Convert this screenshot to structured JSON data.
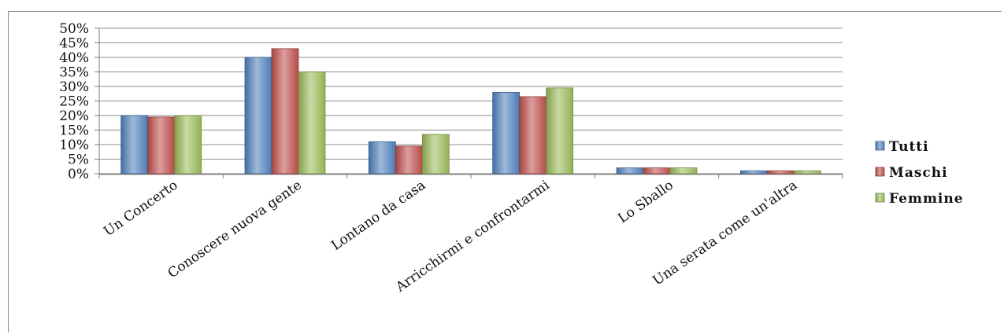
{
  "chart_data": {
    "type": "bar",
    "title": "",
    "xlabel": "",
    "ylabel": "",
    "ylim": [
      0,
      50
    ],
    "y_unit": "%",
    "y_ticks": [
      "0%",
      "5%",
      "10%",
      "15%",
      "20%",
      "25%",
      "30%",
      "35%",
      "40%",
      "45%",
      "50%"
    ],
    "grid": true,
    "legend_position": "right",
    "categories": [
      "Un Concerto",
      "Conoscere nuova gente",
      "Lontano da casa",
      "Arricchirmi e confrontarmi",
      "Lo Sballo",
      "Una serata come un'altra"
    ],
    "series": [
      {
        "name": "Tutti",
        "color": "#4f81bd",
        "values": [
          20,
          40,
          11,
          28,
          2,
          1
        ]
      },
      {
        "name": "Maschi",
        "color": "#c0504d",
        "values": [
          19.5,
          43,
          9.5,
          26.5,
          2,
          1
        ]
      },
      {
        "name": "Femmine",
        "color": "#9bbb59",
        "values": [
          20,
          35,
          13.5,
          29.5,
          2,
          1
        ]
      }
    ]
  }
}
